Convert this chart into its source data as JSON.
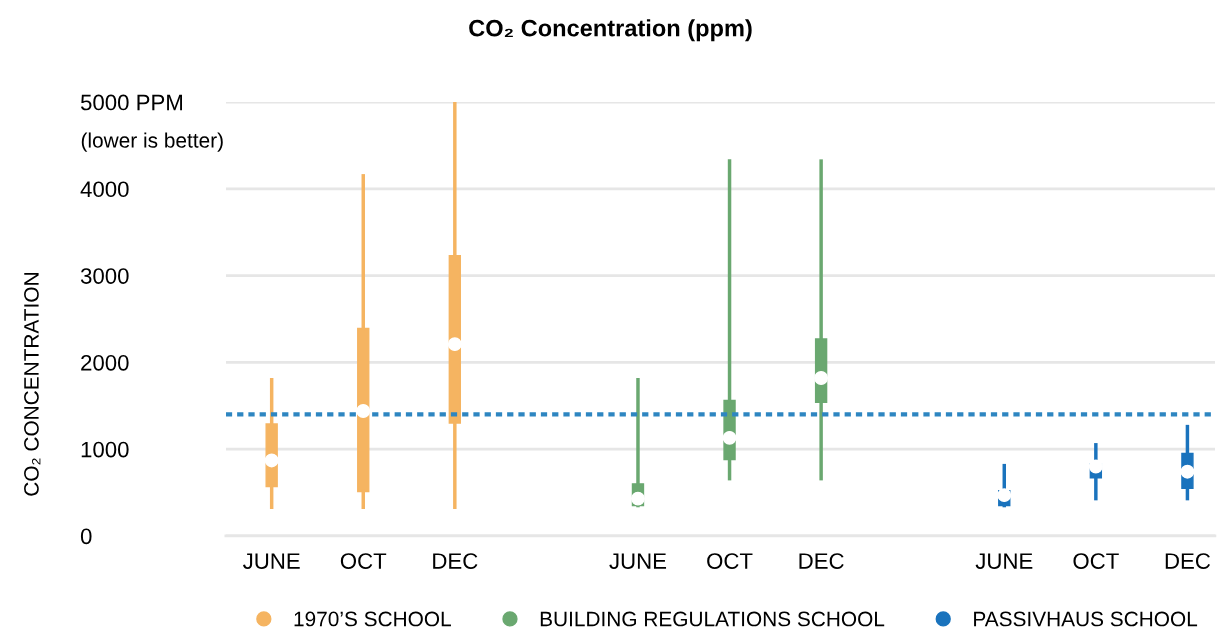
{
  "chart_data": {
    "type": "box",
    "title": "CO₂ Concentration (ppm)",
    "ylabel": "CO₂ CONCENTRATION",
    "categories": [
      "JUNE",
      "OCT",
      "DEC",
      null,
      "JUNE",
      "OCT",
      "DEC",
      null,
      "JUNE",
      "OCT",
      "DEC"
    ],
    "series": [
      {
        "name": "1970’S SCHOOL",
        "color": "#f5b461",
        "boxes": [
          {
            "low": 330,
            "q1": 570,
            "median": 870,
            "q3": 1290,
            "high": 1800
          },
          {
            "low": 330,
            "q1": 510,
            "median": 1440,
            "q3": 2390,
            "high": 4150
          },
          {
            "low": 330,
            "q1": 1300,
            "median": 2210,
            "q3": 3230,
            "high": 5000
          },
          null,
          null,
          null,
          null,
          null,
          null,
          null,
          null
        ]
      },
      {
        "name": "BUILDING REGULATIONS SCHOOL",
        "color": "#6aa870",
        "boxes": [
          null,
          null,
          null,
          null,
          {
            "low": 350,
            "q1": 350,
            "median": 430,
            "q3": 600,
            "high": 1800
          },
          {
            "low": 660,
            "q1": 880,
            "median": 1130,
            "q3": 1560,
            "high": 4320
          },
          {
            "low": 660,
            "q1": 1540,
            "median": 1820,
            "q3": 2270,
            "high": 4320
          },
          null,
          null,
          null,
          null
        ]
      },
      {
        "name": "PASSIVHAUS SCHOOL",
        "color": "#1a73bd",
        "boxes": [
          null,
          null,
          null,
          null,
          null,
          null,
          null,
          null,
          {
            "low": 350,
            "q1": 350,
            "median": 470,
            "q3": 520,
            "high": 810
          },
          {
            "low": 430,
            "q1": 670,
            "median": 800,
            "q3": 830,
            "high": 1050
          },
          {
            "low": 430,
            "q1": 550,
            "median": 740,
            "q3": 950,
            "high": 1260
          }
        ]
      }
    ],
    "ylim": [
      0,
      5000
    ],
    "yticks": [
      0,
      1000,
      2000,
      3000,
      4000,
      {
        "value": 5000,
        "label": "5000 PPM"
      }
    ],
    "ref_lines": [
      {
        "axis": "y",
        "value": 1400,
        "label": null,
        "color": "#2e86c1",
        "line_style": "dotted"
      }
    ],
    "annotations": [
      "(lower is better)"
    ],
    "grid": "y",
    "legend": "bottom"
  }
}
